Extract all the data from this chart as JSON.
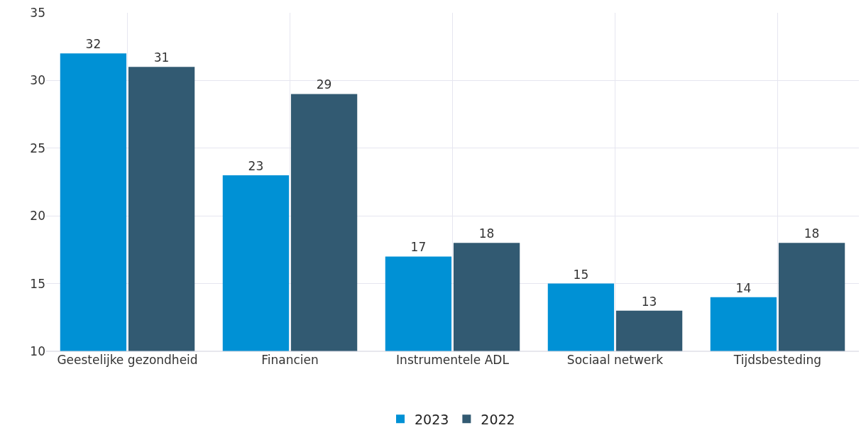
{
  "chart_data": {
    "type": "bar",
    "categories": [
      "Geestelijke gezondheid",
      "Financien",
      "Instrumentele ADL",
      "Sociaal netwerk",
      "Tijdsbesteding"
    ],
    "series": [
      {
        "name": "2023",
        "color": "#0091d5",
        "values": [
          32,
          23,
          17,
          15,
          14
        ]
      },
      {
        "name": "2022",
        "color": "#325a72",
        "values": [
          31,
          29,
          18,
          13,
          18
        ]
      }
    ],
    "ylim": [
      10,
      35
    ],
    "yticks": [
      10,
      15,
      20,
      25,
      30,
      35
    ],
    "grid": true,
    "legend": "bottom",
    "data_labels": true
  }
}
